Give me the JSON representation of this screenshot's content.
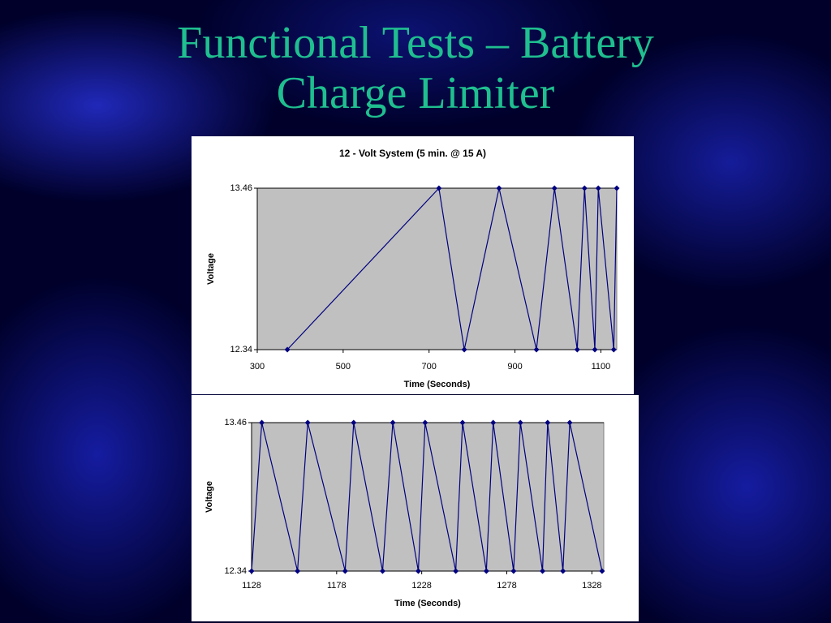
{
  "title": "Functional Tests – Battery Charge Limiter",
  "chart_data": [
    {
      "type": "line",
      "title": "12 - Volt System (5 min. @ 15 A)",
      "xlabel": "Time (Seconds)",
      "ylabel": "Voltage",
      "x": [
        370,
        723,
        782,
        863,
        950,
        992,
        1045,
        1062,
        1086,
        1094,
        1130,
        1137
      ],
      "values": [
        12.34,
        13.46,
        12.34,
        13.46,
        12.34,
        13.46,
        12.34,
        13.46,
        12.34,
        13.46,
        12.34,
        13.46
      ],
      "color": "#000080",
      "xlim": [
        300,
        1137
      ],
      "xticks": [
        300,
        500,
        700,
        900,
        1100
      ],
      "ylim": [
        12.34,
        13.46
      ],
      "yticks": [
        12.34,
        13.46
      ]
    },
    {
      "type": "line",
      "xlabel": "Time (Seconds)",
      "ylabel": "Voltage",
      "x": [
        1128,
        1134,
        1155,
        1161,
        1183,
        1188,
        1205,
        1211,
        1226,
        1230,
        1248,
        1252,
        1266,
        1270,
        1282,
        1286,
        1299,
        1302,
        1311,
        1315,
        1334
      ],
      "values": [
        12.34,
        13.46,
        12.34,
        13.46,
        12.34,
        13.46,
        12.34,
        13.46,
        12.34,
        13.46,
        12.34,
        13.46,
        12.34,
        13.46,
        12.34,
        13.46,
        12.34,
        13.46,
        12.34,
        13.46,
        12.34
      ],
      "color": "#000080",
      "xlim": [
        1128,
        1335
      ],
      "xticks": [
        1128,
        1178,
        1228,
        1278,
        1328
      ],
      "ylim": [
        12.34,
        13.46
      ],
      "yticks": [
        12.34,
        13.46
      ]
    }
  ]
}
